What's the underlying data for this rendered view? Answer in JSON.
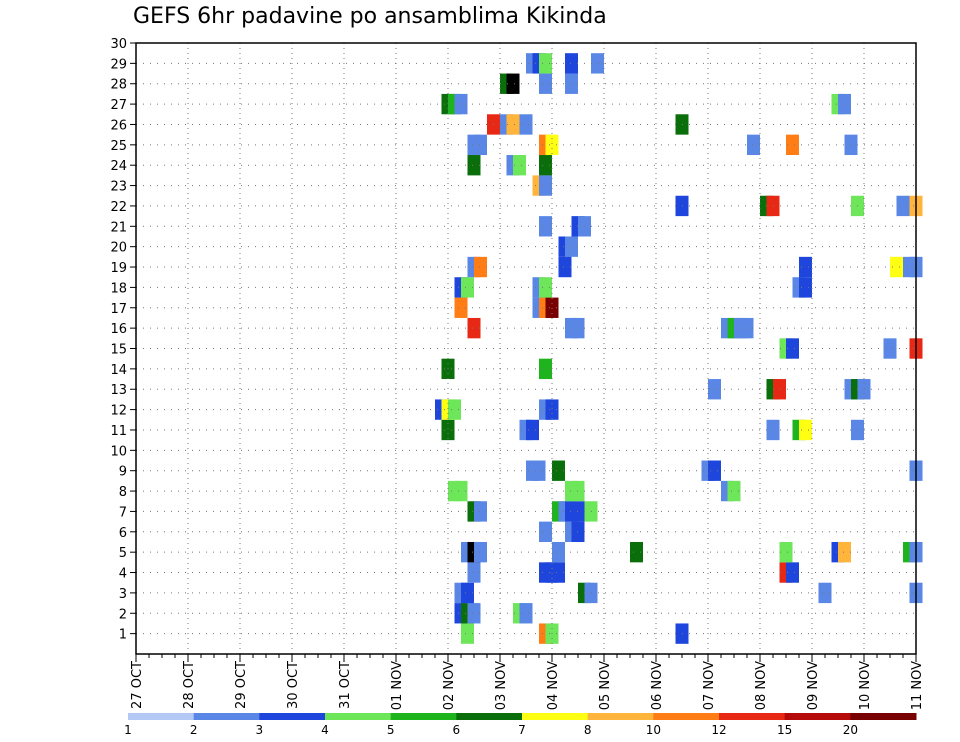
{
  "chart_data": {
    "type": "heatmap",
    "title": "GEFS 6hr padavine po ansamblima Kikinda",
    "xlabel": "",
    "ylabel": "",
    "x_tick_labels": [
      "27 OCT",
      "28 OCT",
      "29 OCT",
      "30 OCT",
      "31 OCT",
      "01 NOV",
      "02 NOV",
      "03 NOV",
      "04 NOV",
      "05 NOV",
      "06 NOV",
      "07 NOV",
      "08 NOV",
      "09 NOV",
      "10 NOV",
      "11 NOV"
    ],
    "x_range_days": [
      0,
      15
    ],
    "y_tick_labels": [
      "1",
      "2",
      "3",
      "4",
      "5",
      "6",
      "7",
      "8",
      "9",
      "10",
      "11",
      "12",
      "13",
      "14",
      "15",
      "16",
      "17",
      "18",
      "19",
      "20",
      "21",
      "22",
      "23",
      "24",
      "25",
      "26",
      "27",
      "28",
      "29",
      "30"
    ],
    "y_range": [
      0,
      30
    ],
    "grid": true,
    "colorbar": {
      "placement": "bottom",
      "labels": [
        "1",
        "2",
        "3",
        "4",
        "5",
        "6",
        "7",
        "8",
        "10",
        "12",
        "15",
        "20"
      ],
      "colors": [
        "#b4c8f5",
        "#5a87e6",
        "#1e46dc",
        "#6ee65a",
        "#1eb41e",
        "#0a6e0a",
        "#ffff14",
        "#ffb43c",
        "#ff7d14",
        "#e62814",
        "#b40a0a",
        "#780000"
      ]
    },
    "cells": [
      [
        6.25,
        1,
        3
      ],
      [
        7.75,
        1,
        8
      ],
      [
        7.875,
        1,
        3
      ],
      [
        10.375,
        1,
        2
      ],
      [
        6.125,
        2,
        2
      ],
      [
        6.25,
        2,
        5
      ],
      [
        6.375,
        2,
        1
      ],
      [
        7.25,
        2,
        3
      ],
      [
        7.375,
        2,
        1
      ],
      [
        6.125,
        3,
        1
      ],
      [
        6.25,
        3,
        2
      ],
      [
        8.5,
        3,
        5
      ],
      [
        8.625,
        3,
        1
      ],
      [
        13.125,
        3,
        1
      ],
      [
        14.875,
        3,
        1
      ],
      [
        6.375,
        4,
        1
      ],
      [
        7.75,
        4,
        2
      ],
      [
        7.875,
        4,
        2
      ],
      [
        8.0,
        4,
        2
      ],
      [
        12.375,
        4,
        9
      ],
      [
        12.5,
        4,
        2
      ],
      [
        6.25,
        5,
        1
      ],
      [
        6.375,
        5,
        12
      ],
      [
        6.5,
        5,
        1
      ],
      [
        8.0,
        5,
        1
      ],
      [
        9.5,
        5,
        5
      ],
      [
        12.375,
        5,
        3
      ],
      [
        13.375,
        5,
        2
      ],
      [
        13.5,
        5,
        7
      ],
      [
        14.75,
        5,
        4
      ],
      [
        14.875,
        5,
        1
      ],
      [
        7.75,
        6,
        1
      ],
      [
        8.25,
        6,
        1
      ],
      [
        8.375,
        6,
        2
      ],
      [
        6.375,
        7,
        5
      ],
      [
        6.5,
        7,
        1
      ],
      [
        8.0,
        7,
        4
      ],
      [
        8.125,
        7,
        1
      ],
      [
        8.25,
        7,
        2
      ],
      [
        8.375,
        7,
        2
      ],
      [
        8.625,
        7,
        3
      ],
      [
        6.0,
        8,
        3
      ],
      [
        6.125,
        8,
        3
      ],
      [
        8.25,
        8,
        3
      ],
      [
        8.375,
        8,
        3
      ],
      [
        11.25,
        8,
        1
      ],
      [
        11.375,
        8,
        3
      ],
      [
        7.5,
        9,
        1
      ],
      [
        7.625,
        9,
        1
      ],
      [
        8.0,
        9,
        5
      ],
      [
        10.875,
        9,
        1
      ],
      [
        11.0,
        9,
        2
      ],
      [
        14.875,
        9,
        1
      ],
      [
        5.875,
        11,
        5
      ],
      [
        7.375,
        11,
        1
      ],
      [
        7.5,
        11,
        2
      ],
      [
        12.125,
        11,
        1
      ],
      [
        12.625,
        11,
        4
      ],
      [
        12.75,
        11,
        6
      ],
      [
        13.75,
        11,
        1
      ],
      [
        5.75,
        12,
        2
      ],
      [
        5.875,
        12,
        6
      ],
      [
        6.0,
        12,
        3
      ],
      [
        7.75,
        12,
        1
      ],
      [
        7.875,
        12,
        2
      ],
      [
        11.0,
        13,
        1
      ],
      [
        12.125,
        13,
        5
      ],
      [
        12.25,
        13,
        9
      ],
      [
        13.625,
        13,
        1
      ],
      [
        13.75,
        13,
        5
      ],
      [
        13.875,
        13,
        1
      ],
      [
        5.875,
        14,
        5
      ],
      [
        7.75,
        14,
        4
      ],
      [
        12.375,
        15,
        3
      ],
      [
        12.5,
        15,
        2
      ],
      [
        14.375,
        15,
        1
      ],
      [
        14.875,
        15,
        9
      ],
      [
        6.375,
        16,
        9
      ],
      [
        8.25,
        16,
        1
      ],
      [
        8.375,
        16,
        1
      ],
      [
        11.25,
        16,
        1
      ],
      [
        11.375,
        16,
        4
      ],
      [
        11.5,
        16,
        1
      ],
      [
        11.625,
        16,
        1
      ],
      [
        6.125,
        17,
        8
      ],
      [
        7.625,
        17,
        1
      ],
      [
        7.75,
        17,
        8
      ],
      [
        7.875,
        17,
        11
      ],
      [
        6.125,
        18,
        2
      ],
      [
        6.25,
        18,
        3
      ],
      [
        7.625,
        18,
        1
      ],
      [
        7.75,
        18,
        3
      ],
      [
        12.625,
        18,
        1
      ],
      [
        12.75,
        18,
        2
      ],
      [
        6.375,
        19,
        1
      ],
      [
        6.5,
        19,
        8
      ],
      [
        8.125,
        19,
        2
      ],
      [
        12.75,
        19,
        2
      ],
      [
        14.5,
        19,
        6
      ],
      [
        14.75,
        19,
        1
      ],
      [
        14.875,
        19,
        1
      ],
      [
        8.125,
        20,
        2
      ],
      [
        8.25,
        20,
        1
      ],
      [
        7.75,
        21,
        1
      ],
      [
        8.375,
        21,
        2
      ],
      [
        8.5,
        21,
        1
      ],
      [
        10.375,
        22,
        2
      ],
      [
        12.0,
        22,
        5
      ],
      [
        12.125,
        22,
        9
      ],
      [
        13.75,
        22,
        3
      ],
      [
        14.625,
        22,
        1
      ],
      [
        14.875,
        22,
        7
      ],
      [
        7.625,
        23,
        7
      ],
      [
        7.75,
        23,
        1
      ],
      [
        6.375,
        24,
        5
      ],
      [
        7.125,
        24,
        1
      ],
      [
        7.25,
        24,
        3
      ],
      [
        7.75,
        24,
        5
      ],
      [
        6.375,
        25,
        1
      ],
      [
        6.5,
        25,
        1
      ],
      [
        7.75,
        25,
        8
      ],
      [
        7.875,
        25,
        6
      ],
      [
        11.75,
        25,
        1
      ],
      [
        12.5,
        25,
        8
      ],
      [
        13.625,
        25,
        1
      ],
      [
        6.75,
        26,
        9
      ],
      [
        7.0,
        26,
        1
      ],
      [
        7.125,
        26,
        7
      ],
      [
        7.375,
        26,
        1
      ],
      [
        10.375,
        26,
        5
      ],
      [
        5.875,
        27,
        5
      ],
      [
        6.0,
        27,
        4
      ],
      [
        6.125,
        27,
        1
      ],
      [
        13.375,
        27,
        3
      ],
      [
        13.5,
        27,
        1
      ],
      [
        7.0,
        28,
        5
      ],
      [
        7.125,
        28,
        12
      ],
      [
        7.75,
        28,
        1
      ],
      [
        8.25,
        28,
        1
      ],
      [
        7.5,
        29,
        1
      ],
      [
        7.625,
        29,
        2
      ],
      [
        7.75,
        29,
        3
      ],
      [
        8.25,
        29,
        2
      ],
      [
        8.75,
        29,
        1
      ]
    ]
  }
}
